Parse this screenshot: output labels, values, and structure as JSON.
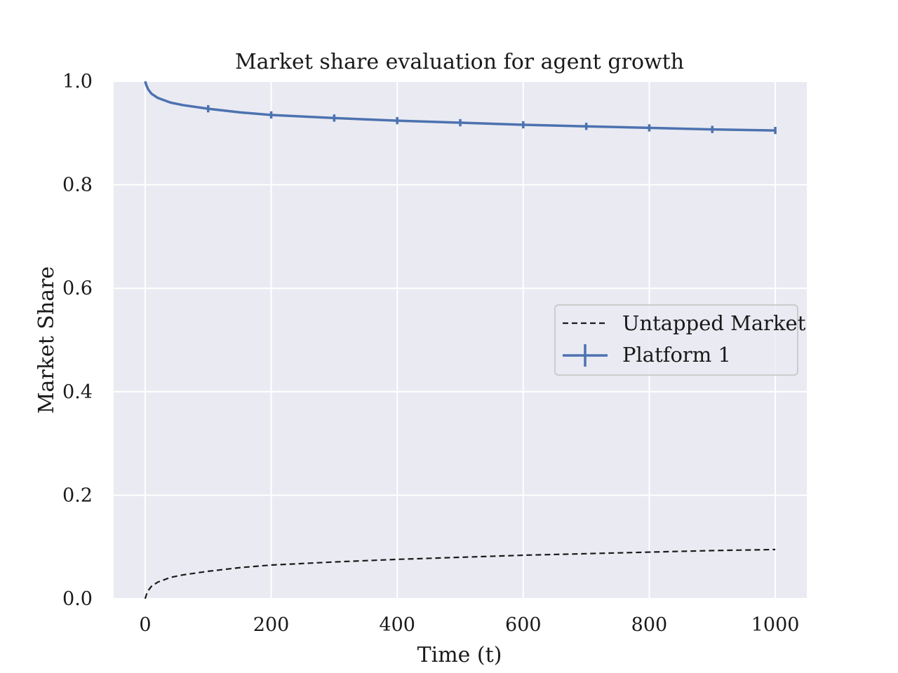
{
  "chart_data": {
    "type": "line",
    "title": "Market share evaluation for agent growth",
    "xlabel": "Time (t)",
    "ylabel": "Market Share",
    "xlim": [
      -50,
      1050
    ],
    "ylim": [
      0.0,
      1.0
    ],
    "xticks": [
      0,
      200,
      400,
      600,
      800,
      1000
    ],
    "yticks": [
      0.0,
      0.2,
      0.4,
      0.6,
      0.8,
      1.0
    ],
    "xtick_labels": [
      "0",
      "200",
      "400",
      "600",
      "800",
      "1000"
    ],
    "ytick_labels": [
      "0.0",
      "0.2",
      "0.4",
      "0.6",
      "0.8",
      "1.0"
    ],
    "grid": true,
    "legend_position": "center-right",
    "series": [
      {
        "name": "Untapped Market",
        "style": "dashed",
        "color": "#1a1a1a",
        "x": [
          0,
          2,
          5,
          10,
          20,
          40,
          60,
          100,
          150,
          200,
          300,
          400,
          500,
          600,
          700,
          800,
          900,
          1000
        ],
        "y": [
          0.0,
          0.008,
          0.016,
          0.024,
          0.032,
          0.041,
          0.046,
          0.053,
          0.06,
          0.065,
          0.071,
          0.076,
          0.08,
          0.084,
          0.087,
          0.09,
          0.093,
          0.095
        ]
      },
      {
        "name": "Platform 1",
        "style": "solid-errorbar",
        "color": "#4c72b0",
        "x": [
          0,
          2,
          5,
          10,
          20,
          40,
          60,
          100,
          150,
          200,
          300,
          400,
          500,
          600,
          700,
          800,
          900,
          1000
        ],
        "y": [
          1.0,
          0.992,
          0.984,
          0.976,
          0.968,
          0.959,
          0.954,
          0.947,
          0.94,
          0.935,
          0.929,
          0.924,
          0.92,
          0.916,
          0.913,
          0.91,
          0.907,
          0.905
        ],
        "errorbar_x": [
          100,
          200,
          300,
          400,
          500,
          600,
          700,
          800,
          900,
          1000
        ],
        "errorbar_y": [
          0.947,
          0.935,
          0.929,
          0.924,
          0.92,
          0.916,
          0.913,
          0.91,
          0.907,
          0.905
        ],
        "errorbar_err": 0.007
      }
    ],
    "colors": {
      "plot_background": "#eaeaf2",
      "grid": "#ffffff",
      "legend_border": "#cccccc"
    }
  }
}
